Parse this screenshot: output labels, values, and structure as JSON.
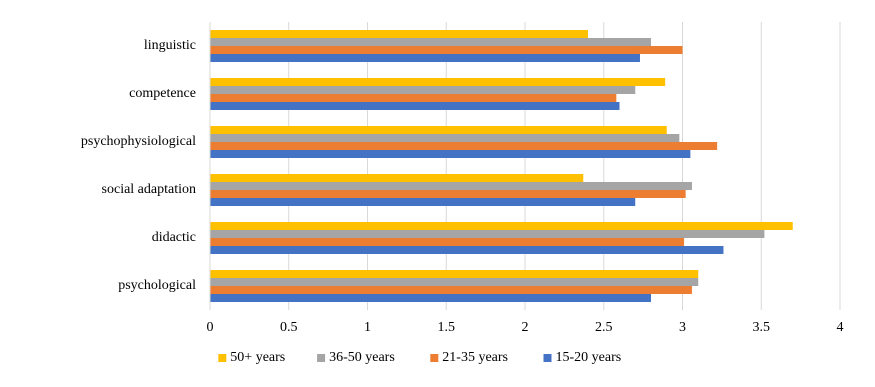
{
  "chart_data": {
    "type": "hbar",
    "categories": [
      "linguistic",
      "competence",
      "psychophysiological",
      "social adaptation",
      "didactic",
      "psychological"
    ],
    "series": [
      {
        "name": "50+ years",
        "color": "#ffc000",
        "values": [
          2.4,
          2.89,
          2.9,
          2.37,
          3.7,
          3.1
        ]
      },
      {
        "name": "36-50 years",
        "color": "#a5a5a5",
        "values": [
          2.8,
          2.7,
          2.98,
          3.06,
          3.52,
          3.1
        ]
      },
      {
        "name": "21-35 years",
        "color": "#ed7d31",
        "values": [
          3.0,
          2.58,
          3.22,
          3.02,
          3.01,
          3.06
        ]
      },
      {
        "name": "15-20 years",
        "color": "#4472c4",
        "values": [
          2.73,
          2.6,
          3.05,
          2.7,
          3.26,
          2.8
        ]
      }
    ],
    "xlim": [
      0,
      4
    ],
    "xticks": [
      0,
      0.5,
      1,
      1.5,
      2,
      2.5,
      3,
      3.5,
      4
    ],
    "grid": true,
    "legend": "bottom"
  }
}
